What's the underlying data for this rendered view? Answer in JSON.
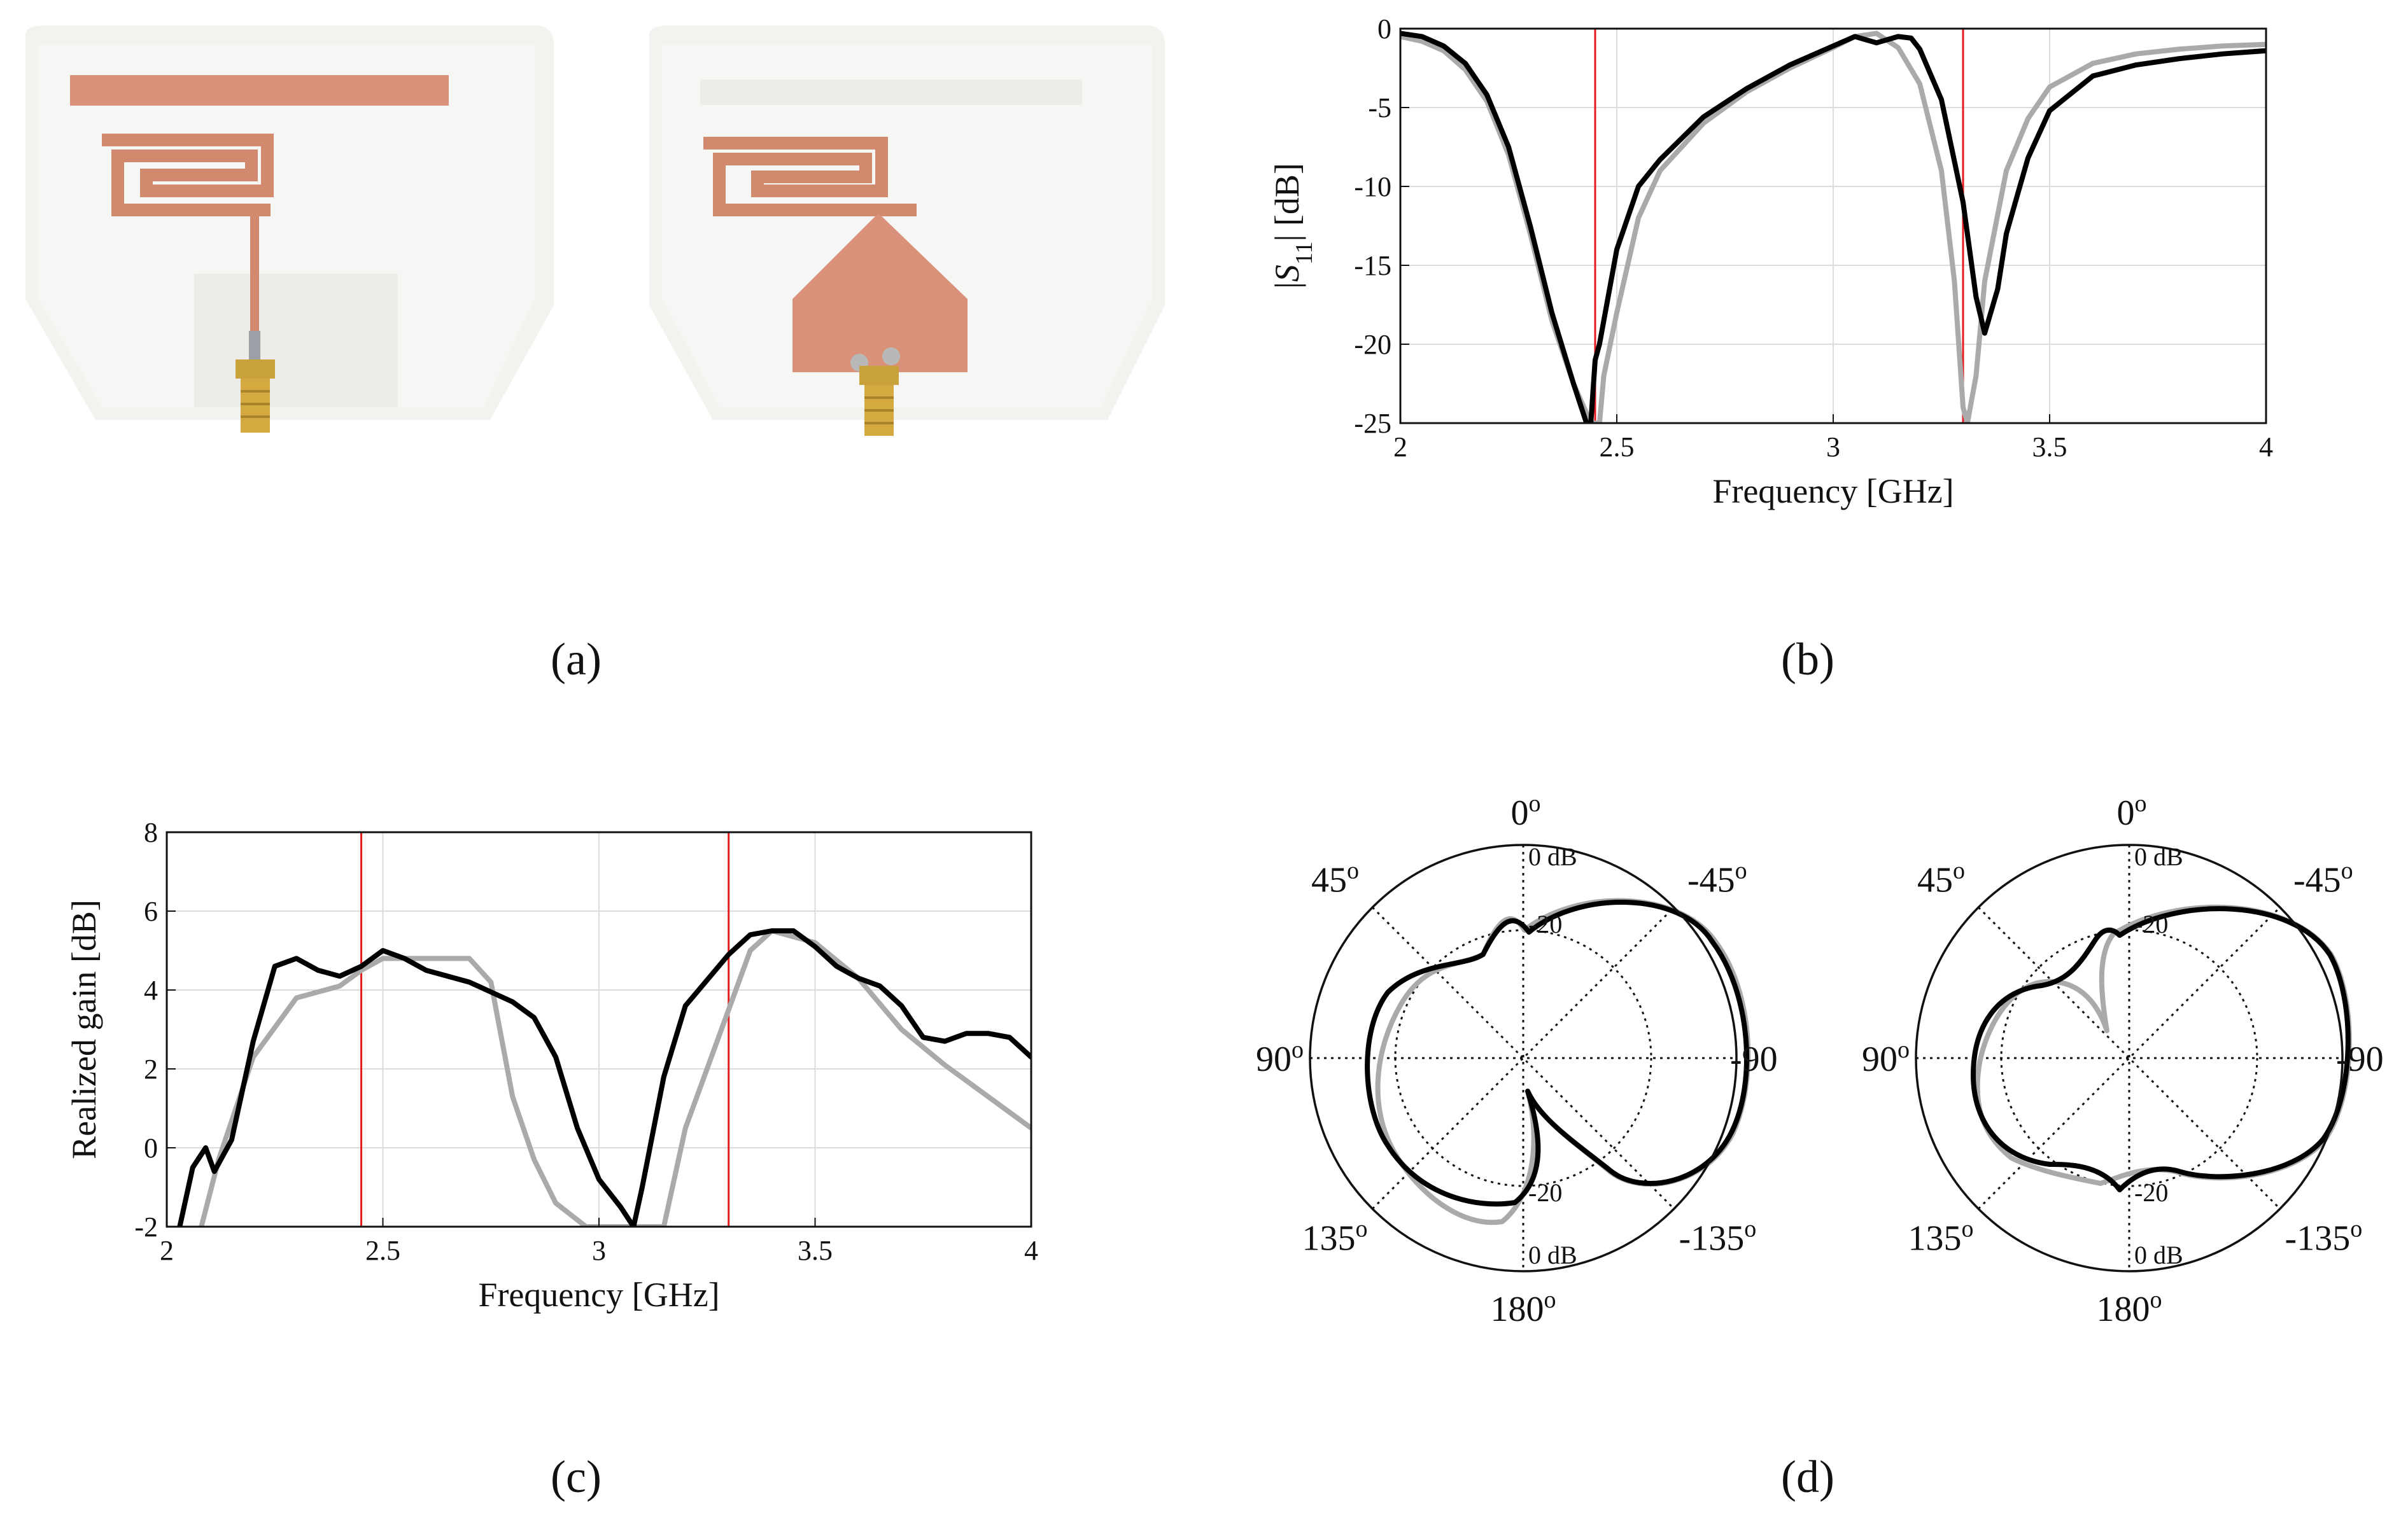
{
  "panel_labels": [
    "(a)",
    "(b)",
    "(c)",
    "(d)"
  ],
  "colors": {
    "series_black": "#000000",
    "series_gray": "#aaaaaa",
    "marker_red": "#e41a1c",
    "copper": "#d98f6c",
    "substrate": "#f3f3f0"
  },
  "photos": {
    "description_icons": [
      "antenna-photo-monopole",
      "antenna-photo-with-ground"
    ]
  },
  "chart_data": [
    {
      "id": "b",
      "type": "line",
      "xlabel": "Frequency [GHz]",
      "ylabel": "|S11| [dB]",
      "xlim": [
        2,
        4
      ],
      "ylim": [
        -25,
        0
      ],
      "xticks": [
        "2",
        "2.5",
        "3",
        "3.5",
        "4"
      ],
      "yticks": [
        "0",
        "-5",
        "-10",
        "-15",
        "-20",
        "-25"
      ],
      "grid": true,
      "vlines": [
        2.45,
        3.3
      ],
      "series": [
        {
          "color": "black",
          "x": [
            2.0,
            2.05,
            2.1,
            2.15,
            2.2,
            2.25,
            2.3,
            2.35,
            2.4,
            2.43,
            2.44,
            2.45,
            2.46,
            2.48,
            2.5,
            2.55,
            2.6,
            2.7,
            2.8,
            2.9,
            3.0,
            3.05,
            3.1,
            3.15,
            3.18,
            3.2,
            3.25,
            3.3,
            3.33,
            3.35,
            3.38,
            3.4,
            3.45,
            3.5,
            3.6,
            3.7,
            3.8,
            3.9,
            4.0
          ],
          "y": [
            -0.3,
            -0.5,
            -1.1,
            -2.2,
            -4.2,
            -7.5,
            -12.5,
            -18,
            -22.5,
            -25,
            -25,
            -21,
            -20,
            -17,
            -14,
            -10,
            -8.3,
            -5.6,
            -3.8,
            -2.3,
            -1.1,
            -0.5,
            -0.9,
            -0.5,
            -0.6,
            -1.3,
            -4.5,
            -11,
            -17,
            -19.3,
            -16.5,
            -13,
            -8.2,
            -5.2,
            -3.0,
            -2.3,
            -1.9,
            -1.6,
            -1.4
          ]
        },
        {
          "color": "gray",
          "x": [
            2.0,
            2.05,
            2.1,
            2.15,
            2.2,
            2.25,
            2.3,
            2.35,
            2.4,
            2.44,
            2.46,
            2.47,
            2.5,
            2.55,
            2.6,
            2.7,
            2.8,
            2.9,
            3.0,
            3.05,
            3.1,
            3.15,
            3.2,
            3.25,
            3.28,
            3.3,
            3.31,
            3.33,
            3.35,
            3.4,
            3.45,
            3.5,
            3.6,
            3.7,
            3.8,
            3.9,
            4.0
          ],
          "y": [
            -0.5,
            -0.8,
            -1.4,
            -2.6,
            -4.6,
            -8,
            -13,
            -18.5,
            -22.5,
            -25,
            -25,
            -22,
            -18,
            -12,
            -9,
            -6,
            -4,
            -2.5,
            -1.2,
            -0.5,
            -0.3,
            -1.2,
            -3.5,
            -9,
            -16,
            -24,
            -25,
            -22,
            -16,
            -9,
            -5.7,
            -3.7,
            -2.2,
            -1.6,
            -1.3,
            -1.1,
            -1.0
          ]
        }
      ]
    },
    {
      "id": "c",
      "type": "line",
      "xlabel": "Frequency [GHz]",
      "ylabel": "Realized gain [dB]",
      "xlim": [
        2,
        4
      ],
      "ylim": [
        -2,
        8
      ],
      "xticks": [
        "2",
        "2.5",
        "3",
        "3.5",
        "4"
      ],
      "yticks": [
        "8",
        "6",
        "4",
        "2",
        "0",
        "-2"
      ],
      "grid": true,
      "vlines": [
        2.45,
        3.3
      ],
      "series": [
        {
          "color": "black",
          "x": [
            2.03,
            2.06,
            2.09,
            2.11,
            2.15,
            2.2,
            2.25,
            2.3,
            2.35,
            2.4,
            2.45,
            2.5,
            2.55,
            2.6,
            2.7,
            2.8,
            2.85,
            2.9,
            2.95,
            3.0,
            3.05,
            3.08,
            3.1,
            3.15,
            3.2,
            3.3,
            3.35,
            3.4,
            3.45,
            3.5,
            3.55,
            3.6,
            3.65,
            3.7,
            3.75,
            3.8,
            3.85,
            3.9,
            3.95,
            4.0
          ],
          "y": [
            -2,
            -0.5,
            0.0,
            -0.6,
            0.2,
            2.7,
            4.6,
            4.8,
            4.5,
            4.35,
            4.6,
            5.0,
            4.8,
            4.5,
            4.2,
            3.7,
            3.3,
            2.3,
            0.5,
            -0.8,
            -1.5,
            -2,
            -1.0,
            1.8,
            3.6,
            4.9,
            5.4,
            5.5,
            5.5,
            5.1,
            4.6,
            4.3,
            4.1,
            3.6,
            2.8,
            2.7,
            2.9,
            2.9,
            2.8,
            2.3
          ]
        },
        {
          "color": "gray",
          "x": [
            2.08,
            2.12,
            2.2,
            2.3,
            2.4,
            2.45,
            2.5,
            2.6,
            2.7,
            2.75,
            2.8,
            2.85,
            2.9,
            2.97,
            3.15,
            3.2,
            3.3,
            3.35,
            3.4,
            3.5,
            3.6,
            3.7,
            3.8,
            3.9,
            4.0
          ],
          "y": [
            -2,
            -0.3,
            2.3,
            3.8,
            4.1,
            4.5,
            4.8,
            4.8,
            4.8,
            4.2,
            1.3,
            -0.3,
            -1.4,
            -2,
            -2,
            0.5,
            3.5,
            5.0,
            5.5,
            5.2,
            4.3,
            3.0,
            2.1,
            1.3,
            0.5
          ]
        }
      ]
    }
  ],
  "polar_panels": [
    {
      "angle_labels": {
        "top": "0o",
        "top_left": "45o",
        "top_right": "-45o",
        "left": "90o",
        "right": "-90",
        "bottom_left": "135o",
        "bottom_right": "-135o",
        "bottom": "180o"
      },
      "db_labels": {
        "top_db": "0 dB",
        "top_inner": "-20",
        "bottom_db": "0 dB",
        "bottom_inner": "-20"
      }
    },
    {
      "angle_labels": {
        "top": "0o",
        "top_left": "45o",
        "top_right": "-45o",
        "left": "90o",
        "right": "-90",
        "bottom_left": "135o",
        "bottom_right": "-135o",
        "bottom": "180o"
      },
      "db_labels": {
        "top_db": "0 dB",
        "top_inner": "-20",
        "bottom_db": "0 dB",
        "bottom_inner": "-20"
      }
    }
  ]
}
